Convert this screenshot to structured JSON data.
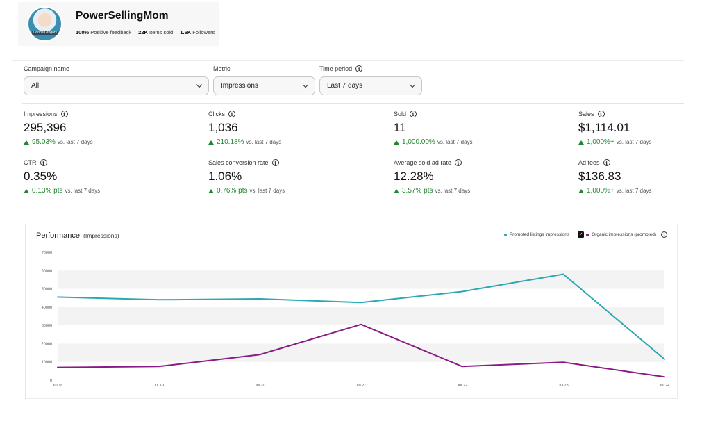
{
  "profile": {
    "name": "PowerSellingMom",
    "avatar_label": "Donna Gregory",
    "feedback_value": "100%",
    "feedback_label": "Positive feedback",
    "sold_value": "22K",
    "sold_label": "Items sold",
    "followers_value": "1.6K",
    "followers_label": "Followers"
  },
  "filters": {
    "campaign": {
      "label": "Campaign name",
      "value": "All"
    },
    "metric": {
      "label": "Metric",
      "value": "Impressions"
    },
    "period": {
      "label": "Time period",
      "value": "Last 7 days"
    }
  },
  "metrics": [
    {
      "label": "Impressions",
      "value": "295,396",
      "delta": "95.03%",
      "vs": "vs. last 7 days"
    },
    {
      "label": "Clicks",
      "value": "1,036",
      "delta": "210.18%",
      "vs": "vs. last 7 days"
    },
    {
      "label": "Sold",
      "value": "11",
      "delta": "1,000.00%",
      "vs": "vs. last 7 days"
    },
    {
      "label": "Sales",
      "value": "$1,114.01",
      "delta": "1,000%+",
      "vs": "vs. last 7 days"
    },
    {
      "label": "CTR",
      "value": "0.35%",
      "delta": "0.13% pts",
      "vs": "vs. last 7 days"
    },
    {
      "label": "Sales conversion rate",
      "value": "1.06%",
      "delta": "0.76% pts",
      "vs": "vs. last 7 days"
    },
    {
      "label": "Average sold ad rate",
      "value": "12.28%",
      "delta": "3.57% pts",
      "vs": "vs. last 7 days"
    },
    {
      "label": "Ad fees",
      "value": "$136.83",
      "delta": "1,000%+",
      "vs": "vs. last 7 days"
    }
  ],
  "chart": {
    "title": "Performance",
    "subtitle": "(Impressions)",
    "legend_promoted": "Promoted listings impressions",
    "legend_organic": "Organic impressions (promoted)",
    "colors": {
      "promoted": "#2aa8b3",
      "organic": "#8a1a86",
      "band": "#f3f3f3"
    }
  },
  "chart_data": {
    "type": "line",
    "title": "Performance (Impressions)",
    "x": [
      "Jul 18",
      "Jul 19",
      "Jul 20",
      "Jul 21",
      "Jul 22",
      "Jul 23",
      "Jul 24"
    ],
    "yticks": [
      0,
      10000,
      20000,
      30000,
      40000,
      50000,
      60000,
      70000
    ],
    "ylim": [
      0,
      70000
    ],
    "grid": true,
    "legend_position": "top-right",
    "series": [
      {
        "name": "Promoted listings impressions",
        "values": [
          45500,
          44000,
          44500,
          42500,
          48500,
          58000,
          11500
        ]
      },
      {
        "name": "Organic impressions (promoted)",
        "values": [
          7000,
          7500,
          14000,
          30500,
          7500,
          9800,
          1800
        ]
      }
    ]
  }
}
